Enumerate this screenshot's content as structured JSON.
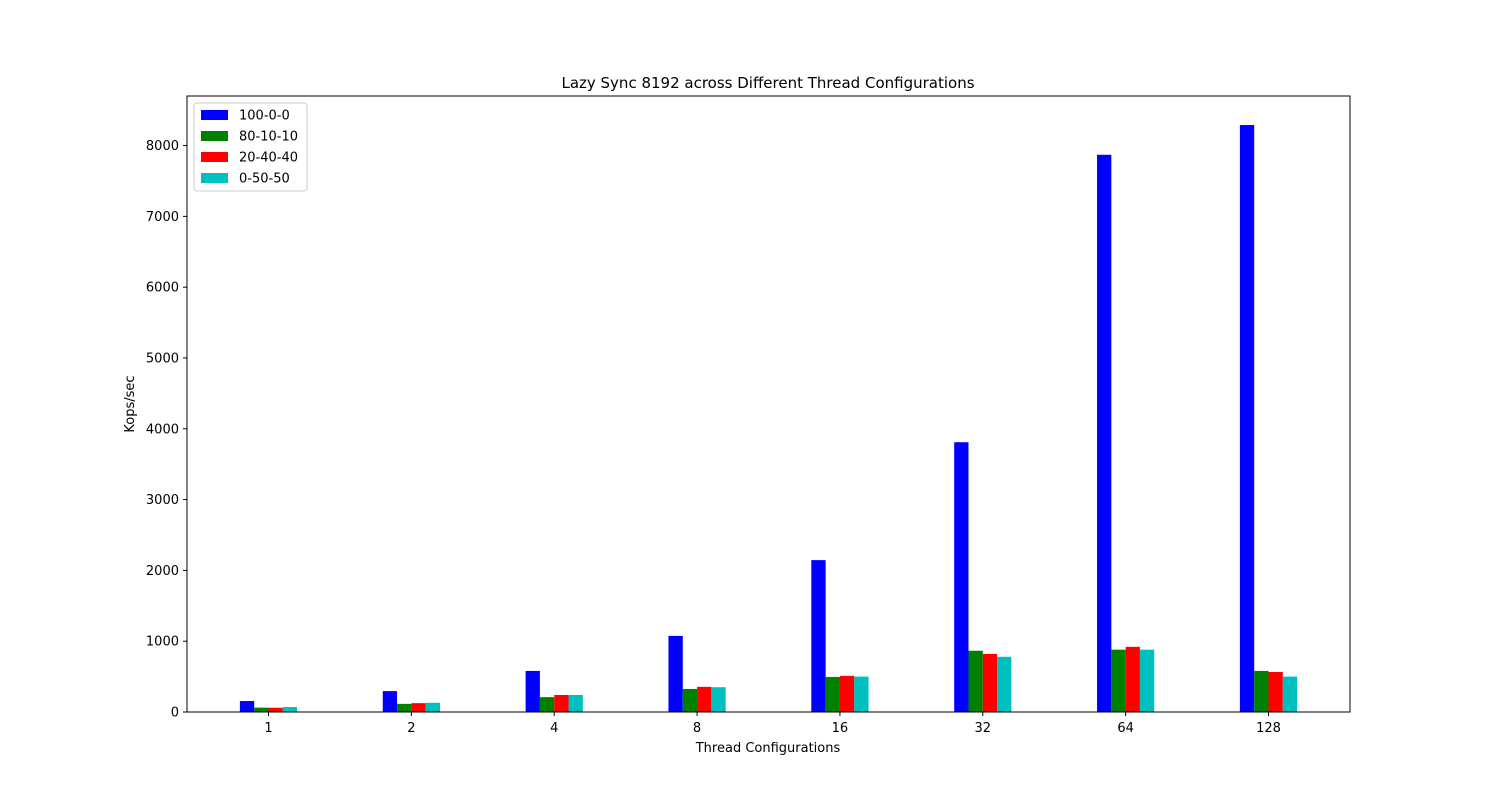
{
  "chart_data": {
    "type": "bar",
    "title": "Lazy Sync 8192 across Different Thread Configurations",
    "xlabel": "Thread Configurations",
    "ylabel": "Kops/sec",
    "categories": [
      "1",
      "2",
      "4",
      "8",
      "16",
      "32",
      "64",
      "128"
    ],
    "ylim": [
      0,
      8700
    ],
    "yticks": [
      0,
      1000,
      2000,
      3000,
      4000,
      5000,
      6000,
      7000,
      8000
    ],
    "grid": false,
    "legend_position": "top-left",
    "series": [
      {
        "name": "100-0-0",
        "color": "#0000ff",
        "values": [
          155,
          295,
          580,
          1075,
          2145,
          3810,
          7870,
          8290
        ]
      },
      {
        "name": "80-10-10",
        "color": "#008000",
        "values": [
          62,
          115,
          210,
          325,
          495,
          865,
          880,
          580
        ]
      },
      {
        "name": "20-40-40",
        "color": "#ff0000",
        "values": [
          60,
          125,
          240,
          355,
          510,
          820,
          920,
          565
        ]
      },
      {
        "name": "0-50-50",
        "color": "#00bfbf",
        "values": [
          70,
          130,
          240,
          350,
          500,
          780,
          880,
          500
        ]
      }
    ]
  }
}
